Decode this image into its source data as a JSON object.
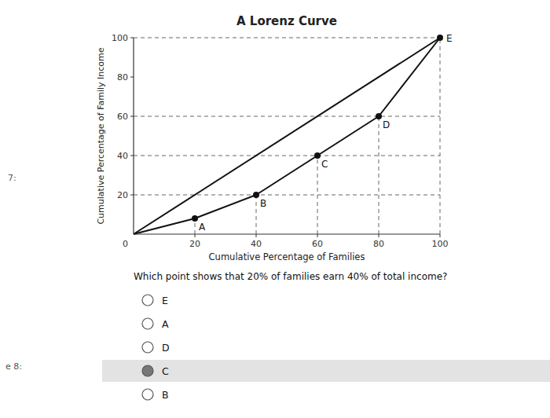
{
  "chart_data": {
    "type": "line",
    "title": "A Lorenz Curve",
    "x_label": "Cumulative Percentage of Families",
    "y_label": "Cumulative Percentage of Family Income",
    "xlim": [
      0,
      100
    ],
    "ylim": [
      0,
      100
    ],
    "xticks": [
      20,
      40,
      60,
      80,
      100
    ],
    "yticks": [
      20,
      40,
      60,
      80,
      100
    ],
    "origin_tick": 0,
    "grid": false,
    "series": [
      {
        "x": [
          0,
          100
        ],
        "values": [
          0,
          100
        ],
        "color": "#111111"
      },
      {
        "x": [
          0,
          20,
          40,
          60,
          80,
          100
        ],
        "values": [
          0,
          8,
          20,
          40,
          60,
          100
        ],
        "color": "#111111"
      }
    ],
    "points": {
      "names": [
        "A",
        "B",
        "C",
        "D",
        "E"
      ],
      "x": [
        20,
        40,
        60,
        80,
        100
      ],
      "values": [
        8,
        20,
        40,
        60,
        100
      ],
      "color": "#111111",
      "marker": "circle"
    },
    "guides": {
      "y": [
        20,
        40,
        60,
        100
      ],
      "x": [
        20,
        40,
        60,
        80,
        100
      ],
      "color": "#666666",
      "line_style": "dashed"
    },
    "question": {
      "text": "Which point shows that 20% of families earn 40% of total income?",
      "options": [
        "E",
        "A",
        "D",
        "C",
        "B"
      ],
      "selected": "C"
    },
    "side_labels": [
      "7:",
      "e 8:"
    ]
  }
}
